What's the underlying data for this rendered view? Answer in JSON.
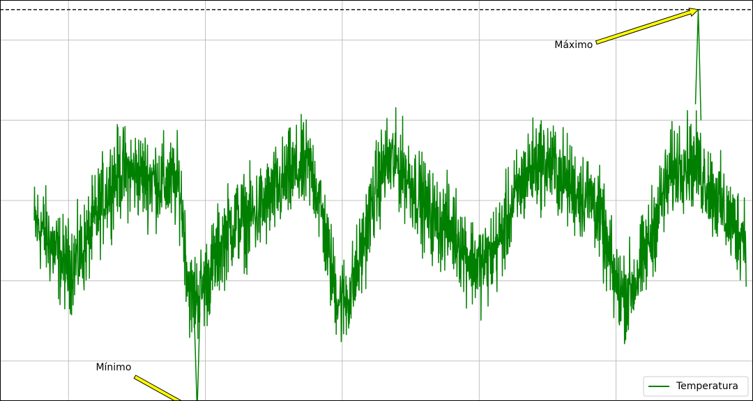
{
  "chart_data": {
    "type": "line",
    "title": "",
    "xlabel": "",
    "ylabel": "",
    "xlim": [
      0,
      5.5
    ],
    "ylim": [
      -25,
      25
    ],
    "grid": true,
    "legend_position": "bottom-right",
    "series": [
      {
        "name": "Temperatura",
        "color": "#008000",
        "envelope_x": [
          0.25,
          0.5,
          0.9,
          1.3,
          1.4,
          1.75,
          2.25,
          2.5,
          2.85,
          3.25,
          3.5,
          3.95,
          4.3,
          4.55,
          5.0,
          5.45
        ],
        "envelope_y": [
          -3.0,
          -8.0,
          3.5,
          2.0,
          -12.0,
          -2.5,
          4.0,
          -12.5,
          4.8,
          -3.0,
          -8.0,
          4.8,
          0.5,
          -11.5,
          5.0,
          -4.0
        ],
        "noise_amplitude": 5.5
      }
    ],
    "reference_lines": [
      {
        "orientation": "horizontal",
        "y": 23.8,
        "style": "dashed",
        "color": "#000000"
      },
      {
        "orientation": "horizontal",
        "y": -26.3,
        "style": "dashed",
        "color": "#000000"
      }
    ],
    "annotations": [
      {
        "text": "Máximo",
        "text_x": 4.05,
        "text_y": 19.0,
        "arrow_x": 5.1,
        "arrow_y": 23.8
      },
      {
        "text": "Mínimo",
        "text_x": 0.7,
        "text_y": -21.2,
        "arrow_x": 1.44,
        "arrow_y": -26.3
      }
    ],
    "legend": {
      "entries": [
        "Temperatura"
      ],
      "position": "bottom-right"
    }
  },
  "legend_label": "Temperatura",
  "annotation_max_label": "Máximo",
  "annotation_min_label": "Mínimo"
}
